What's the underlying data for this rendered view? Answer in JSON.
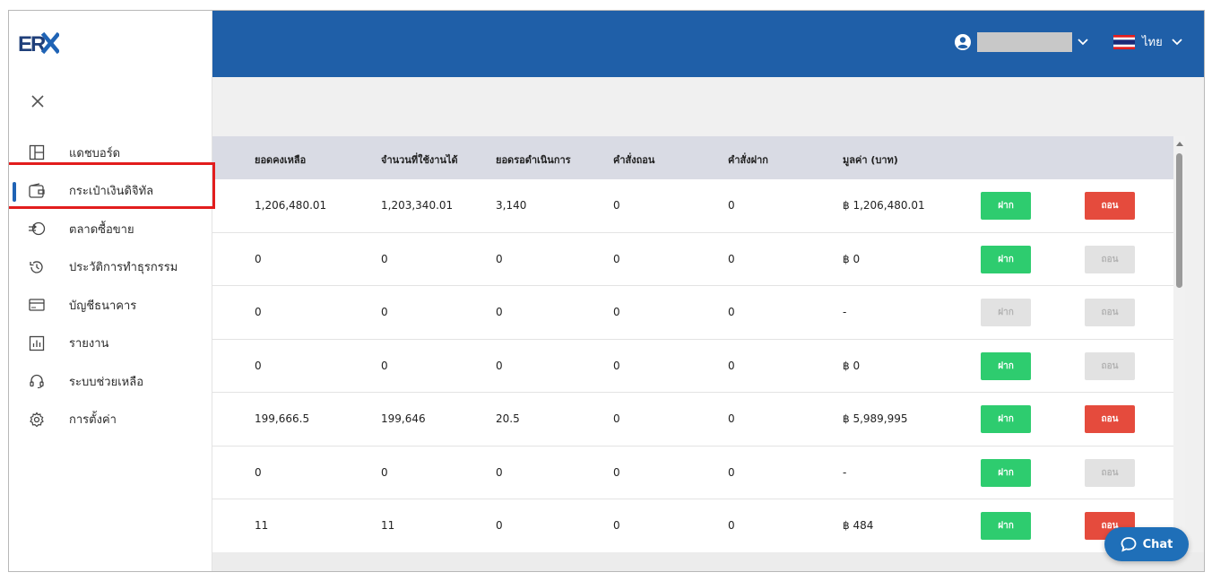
{
  "brand": {
    "logo_text": "ERX"
  },
  "sidebar": {
    "items": [
      {
        "label": "แดชบอร์ด",
        "icon": "dashboard-icon"
      },
      {
        "label": "กระเป๋าเงินดิจิทัล",
        "icon": "wallet-icon",
        "active": true
      },
      {
        "label": "ตลาดซื้อขาย",
        "icon": "exchange-icon"
      },
      {
        "label": "ประวัติการทำธุรกรรม",
        "icon": "history-icon"
      },
      {
        "label": "บัญชีธนาคาร",
        "icon": "bank-card-icon"
      },
      {
        "label": "รายงาน",
        "icon": "report-chart-icon"
      },
      {
        "label": "ระบบช่วยเหลือ",
        "icon": "headset-icon"
      },
      {
        "label": "การตั้งค่า",
        "icon": "gear-icon"
      }
    ]
  },
  "header": {
    "language": "ไทย",
    "colors": {
      "topbar": "#1f5fa8"
    }
  },
  "table": {
    "columns": [
      "ยอดคงเหลือ",
      "จำนวนที่ใช้งานได้",
      "ยอดรอดำเนินการ",
      "คำสั่งถอน",
      "คำสั่งฝาก",
      "มูลค่า (บาท)"
    ],
    "deposit_label": "ฝาก",
    "withdraw_label": "ถอน",
    "rows": [
      {
        "balance": "1,206,480.01",
        "available": "1,203,340.01",
        "pending": "3,140",
        "withdraw_orders": "0",
        "deposit_orders": "0",
        "value": "฿ 1,206,480.01",
        "deposit_enabled": true,
        "withdraw_enabled": true
      },
      {
        "balance": "0",
        "available": "0",
        "pending": "0",
        "withdraw_orders": "0",
        "deposit_orders": "0",
        "value": "฿ 0",
        "deposit_enabled": true,
        "withdraw_enabled": false
      },
      {
        "balance": "0",
        "available": "0",
        "pending": "0",
        "withdraw_orders": "0",
        "deposit_orders": "0",
        "value": "-",
        "deposit_enabled": false,
        "withdraw_enabled": false
      },
      {
        "balance": "0",
        "available": "0",
        "pending": "0",
        "withdraw_orders": "0",
        "deposit_orders": "0",
        "value": "฿ 0",
        "deposit_enabled": true,
        "withdraw_enabled": false
      },
      {
        "balance": "199,666.5",
        "available": "199,646",
        "pending": "20.5",
        "withdraw_orders": "0",
        "deposit_orders": "0",
        "value": "฿ 5,989,995",
        "deposit_enabled": true,
        "withdraw_enabled": true
      },
      {
        "balance": "0",
        "available": "0",
        "pending": "0",
        "withdraw_orders": "0",
        "deposit_orders": "0",
        "value": "-",
        "deposit_enabled": true,
        "withdraw_enabled": false
      },
      {
        "balance": "11",
        "available": "11",
        "pending": "0",
        "withdraw_orders": "0",
        "deposit_orders": "0",
        "value": "฿ 484",
        "deposit_enabled": true,
        "withdraw_enabled": true
      }
    ]
  },
  "chat": {
    "label": "Chat"
  }
}
